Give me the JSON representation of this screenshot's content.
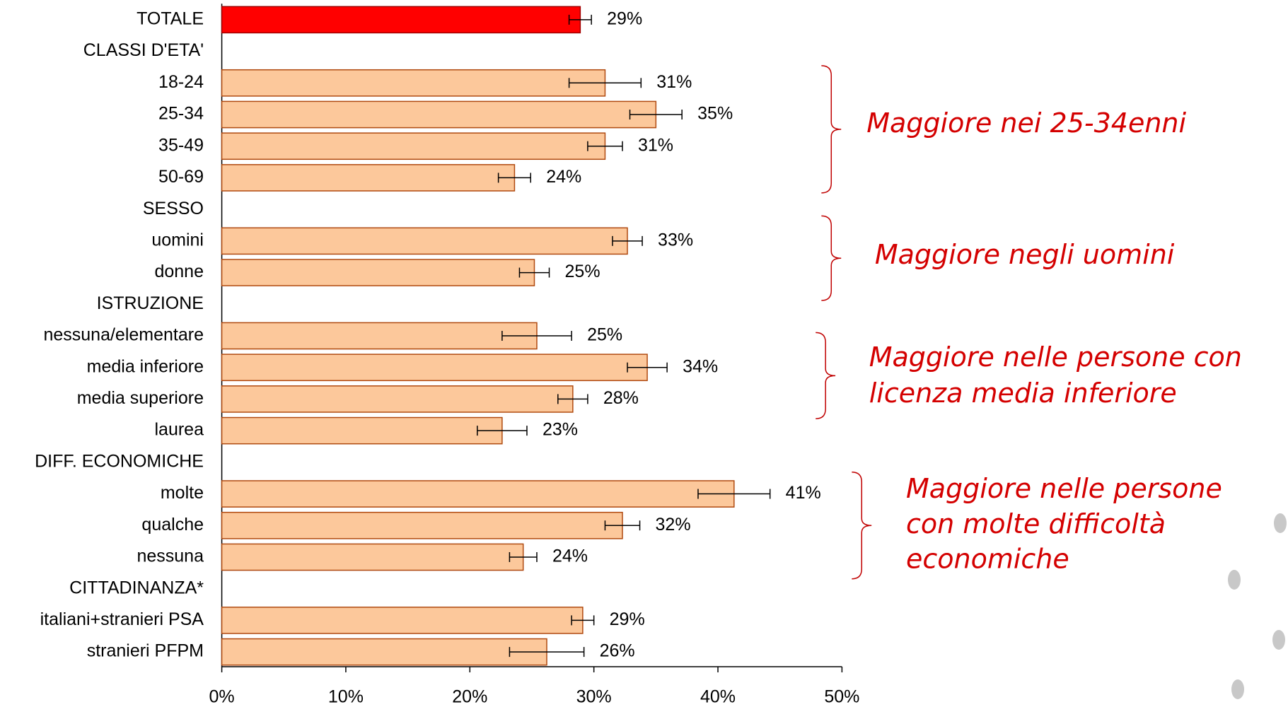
{
  "chart_data": {
    "type": "bar",
    "categories": [
      "TOTALE",
      "CLASSI D'ETA'",
      "18-24",
      "25-34",
      "35-49",
      "50-69",
      "SESSO",
      "uomini",
      "donne",
      "ISTRUZIONE",
      "nessuna/elementare",
      "media inferiore",
      "media superiore",
      "laurea",
      "DIFF. ECONOMICHE",
      "molte",
      "qualche",
      "nessuna",
      "CITTADINANZA*",
      "italiani+stranieri PSA",
      "stranieri PFPM"
    ],
    "values": [
      28.9,
      null,
      30.9,
      35.0,
      30.9,
      23.6,
      null,
      32.7,
      25.2,
      null,
      25.4,
      34.3,
      28.3,
      22.6,
      null,
      41.3,
      32.3,
      24.3,
      null,
      29.1,
      26.2
    ],
    "value_labels": [
      "29%",
      null,
      "31%",
      "35%",
      "31%",
      "24%",
      null,
      "33%",
      "25%",
      null,
      "25%",
      "34%",
      "28%",
      "23%",
      null,
      "41%",
      "32%",
      "24%",
      null,
      "29%",
      "26%"
    ],
    "errors": [
      0.9,
      null,
      2.9,
      2.1,
      1.4,
      1.3,
      null,
      1.2,
      1.2,
      null,
      2.8,
      1.6,
      1.2,
      2.0,
      null,
      2.9,
      1.4,
      1.1,
      null,
      0.9,
      3.0
    ],
    "colors": [
      "#ff0000",
      null,
      "#fcc89b",
      "#fcc89b",
      "#fcc89b",
      "#fcc89b",
      null,
      "#fcc89b",
      "#fcc89b",
      null,
      "#fcc89b",
      "#fcc89b",
      "#fcc89b",
      "#fcc89b",
      null,
      "#fcc89b",
      "#fcc89b",
      "#fcc89b",
      null,
      "#fcc89b",
      "#fcc89b"
    ],
    "xlim": [
      0,
      50
    ],
    "xticks": [
      {
        "value": 0,
        "label": "0%"
      },
      {
        "value": 10,
        "label": "10%"
      },
      {
        "value": 20,
        "label": "20%"
      },
      {
        "value": 30,
        "label": "30%"
      },
      {
        "value": 40,
        "label": "40%"
      },
      {
        "value": 50,
        "label": "50%"
      }
    ],
    "annotations": [
      {
        "lines": [
          "Maggiore nei 25-34enni"
        ]
      },
      {
        "lines": [
          "Maggiore negli uomini"
        ]
      },
      {
        "lines": [
          "Maggiore nelle persone con",
          "licenza media inferiore"
        ]
      },
      {
        "lines": [
          "Maggiore nelle persone",
          "con molte difficoltà",
          "economiche"
        ]
      }
    ]
  }
}
